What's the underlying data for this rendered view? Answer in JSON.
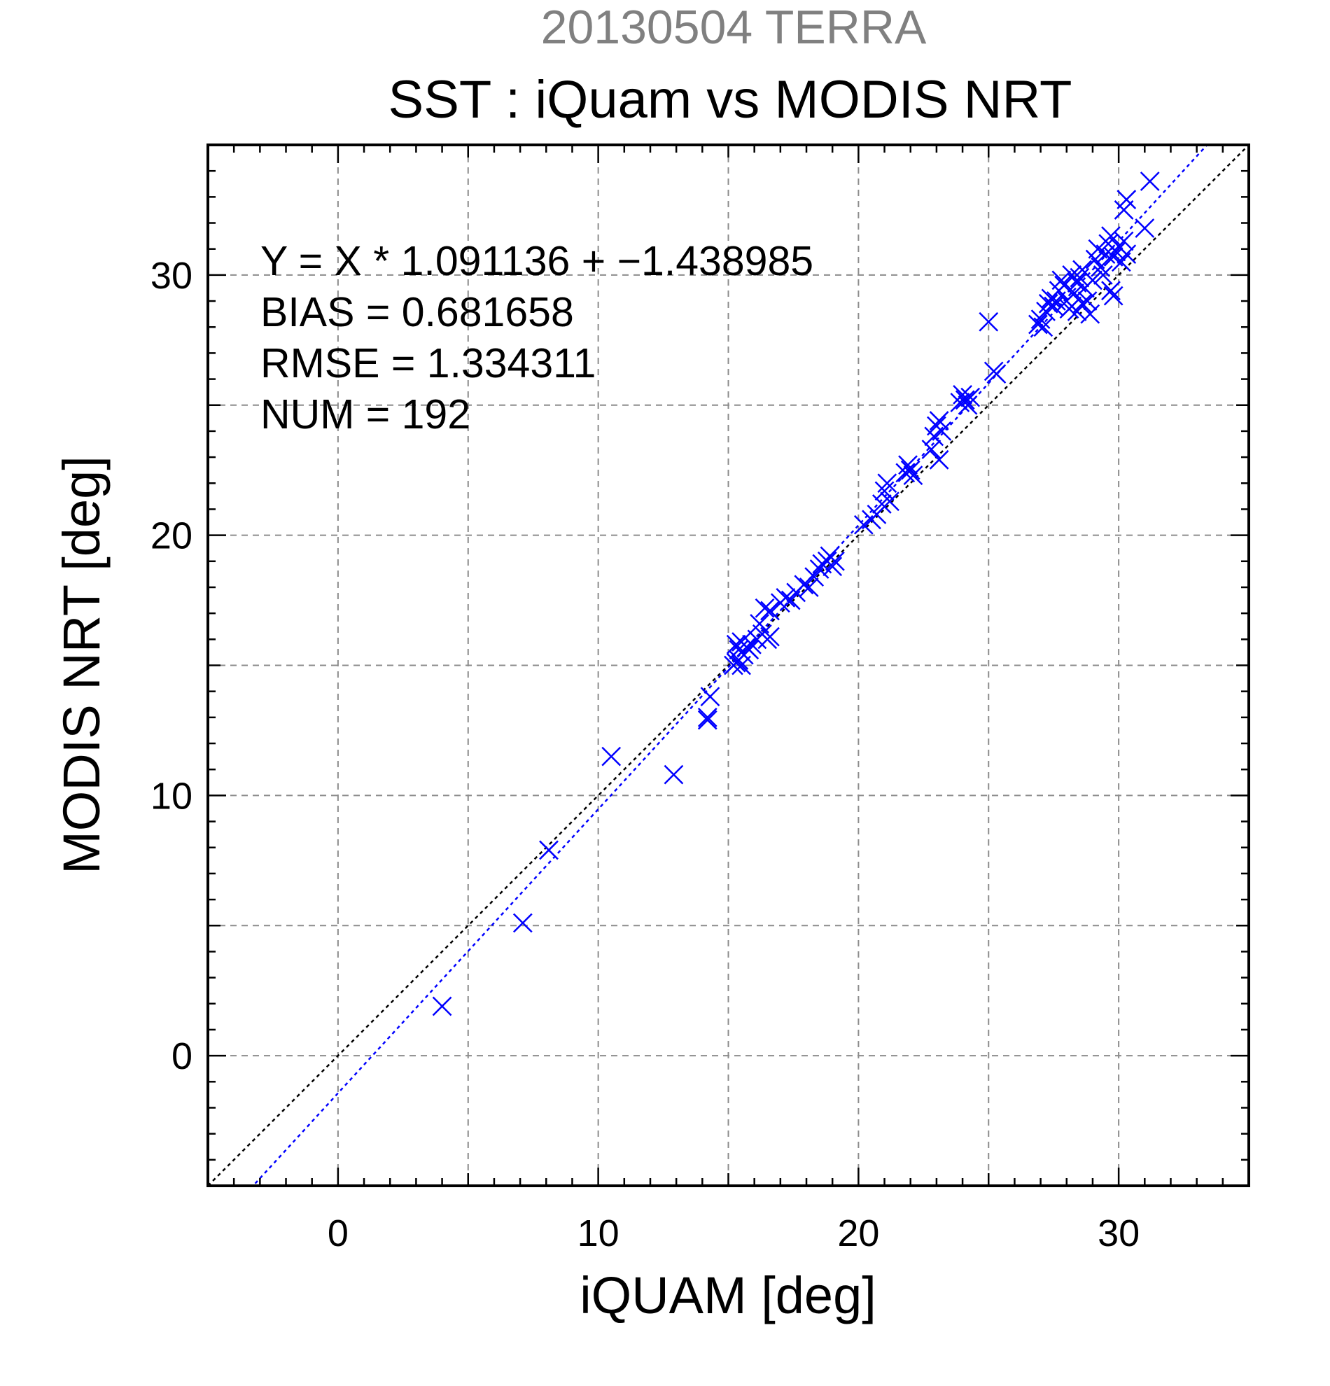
{
  "chart_data": {
    "type": "scatter",
    "supertitle": "20130504 TERRA",
    "title": "SST : iQuam vs MODIS NRT",
    "xlabel": "iQUAM [deg]",
    "ylabel": "MODIS NRT [deg]",
    "xlim": [
      -5,
      35
    ],
    "ylim": [
      -5,
      35
    ],
    "major_ticks": [
      0,
      10,
      20,
      30
    ],
    "major_tick_labels": [
      "0",
      "10",
      "20",
      "30"
    ],
    "minor_tick_step": 1,
    "grid": true,
    "grid_step": 5,
    "stats": {
      "equation": "Y = X * 1.091136 + −1.438985",
      "bias": "BIAS = 0.681658",
      "rmse": "RMSE = 1.334311",
      "num": "NUM = 192"
    },
    "fit_line": {
      "slope": 1.091136,
      "intercept": -1.438985,
      "color": "#0000ff"
    },
    "identity_line": {
      "slope": 1,
      "intercept": 0,
      "color": "#000000"
    },
    "marker": {
      "shape": "x",
      "color": "#0000ff"
    },
    "points": [
      [
        4.0,
        1.9
      ],
      [
        7.1,
        5.1
      ],
      [
        8.1,
        7.9
      ],
      [
        10.5,
        11.5
      ],
      [
        12.9,
        10.8
      ],
      [
        14.2,
        12.9
      ],
      [
        14.2,
        13.0
      ],
      [
        14.3,
        13.8
      ],
      [
        15.2,
        15.0
      ],
      [
        15.3,
        15.1
      ],
      [
        15.4,
        15.2
      ],
      [
        15.5,
        15.0
      ],
      [
        15.3,
        15.8
      ],
      [
        15.4,
        15.6
      ],
      [
        15.6,
        15.4
      ],
      [
        15.7,
        15.7
      ],
      [
        15.5,
        15.9
      ],
      [
        15.8,
        15.6
      ],
      [
        15.9,
        15.8
      ],
      [
        16.1,
        16.0
      ],
      [
        16.3,
        16.2
      ],
      [
        16.5,
        16.0
      ],
      [
        16.6,
        16.1
      ],
      [
        16.2,
        16.6
      ],
      [
        16.4,
        17.2
      ],
      [
        16.6,
        17.1
      ],
      [
        17.0,
        17.4
      ],
      [
        17.2,
        17.6
      ],
      [
        17.4,
        17.5
      ],
      [
        17.6,
        17.8
      ],
      [
        17.9,
        18.1
      ],
      [
        18.1,
        18.0
      ],
      [
        18.3,
        18.4
      ],
      [
        18.5,
        18.7
      ],
      [
        18.6,
        18.9
      ],
      [
        18.8,
        19.0
      ],
      [
        18.9,
        19.2
      ],
      [
        19.0,
        18.8
      ],
      [
        19.1,
        19.0
      ],
      [
        20.2,
        20.4
      ],
      [
        20.5,
        20.6
      ],
      [
        20.7,
        20.8
      ],
      [
        20.9,
        21.2
      ],
      [
        21.0,
        21.7
      ],
      [
        21.1,
        22.0
      ],
      [
        21.2,
        21.3
      ],
      [
        21.8,
        22.4
      ],
      [
        21.9,
        22.7
      ],
      [
        22.0,
        22.5
      ],
      [
        22.1,
        22.3
      ],
      [
        22.8,
        23.3
      ],
      [
        22.9,
        23.8
      ],
      [
        23.0,
        24.2
      ],
      [
        23.1,
        24.4
      ],
      [
        23.2,
        24.0
      ],
      [
        23.1,
        22.9
      ],
      [
        23.9,
        25.1
      ],
      [
        24.0,
        25.4
      ],
      [
        24.1,
        25.2
      ],
      [
        24.2,
        25.0
      ],
      [
        24.3,
        25.3
      ],
      [
        25.0,
        28.2
      ],
      [
        25.2,
        26.3
      ],
      [
        25.3,
        26.2
      ],
      [
        26.9,
        28.1
      ],
      [
        27.0,
        28.3
      ],
      [
        27.1,
        28.0
      ],
      [
        27.2,
        28.6
      ],
      [
        27.3,
        28.9
      ],
      [
        27.4,
        29.1
      ],
      [
        27.5,
        28.8
      ],
      [
        27.6,
        29.0
      ],
      [
        27.7,
        29.4
      ],
      [
        27.8,
        29.8
      ],
      [
        27.9,
        29.6
      ],
      [
        28.0,
        29.0
      ],
      [
        28.1,
        28.7
      ],
      [
        28.2,
        30.0
      ],
      [
        28.3,
        29.3
      ],
      [
        28.4,
        29.7
      ],
      [
        28.5,
        29.9
      ],
      [
        28.6,
        30.2
      ],
      [
        28.7,
        29.5
      ],
      [
        28.8,
        29.0
      ],
      [
        28.9,
        28.5
      ],
      [
        29.0,
        29.8
      ],
      [
        28.2,
        28.8
      ],
      [
        28.4,
        28.6
      ],
      [
        28.6,
        28.9
      ],
      [
        29.1,
        30.6
      ],
      [
        29.2,
        31.0
      ],
      [
        29.3,
        30.3
      ],
      [
        29.4,
        30.0
      ],
      [
        29.5,
        30.8
      ],
      [
        29.6,
        31.2
      ],
      [
        29.7,
        31.5
      ],
      [
        29.8,
        30.7
      ],
      [
        29.9,
        30.9
      ],
      [
        30.0,
        31.1
      ],
      [
        30.1,
        30.5
      ],
      [
        30.2,
        31.3
      ],
      [
        30.3,
        30.8
      ],
      [
        30.2,
        32.5
      ],
      [
        30.3,
        32.9
      ],
      [
        29.7,
        29.4
      ],
      [
        29.8,
        29.2
      ],
      [
        31.0,
        31.8
      ],
      [
        31.2,
        33.6
      ]
    ]
  }
}
